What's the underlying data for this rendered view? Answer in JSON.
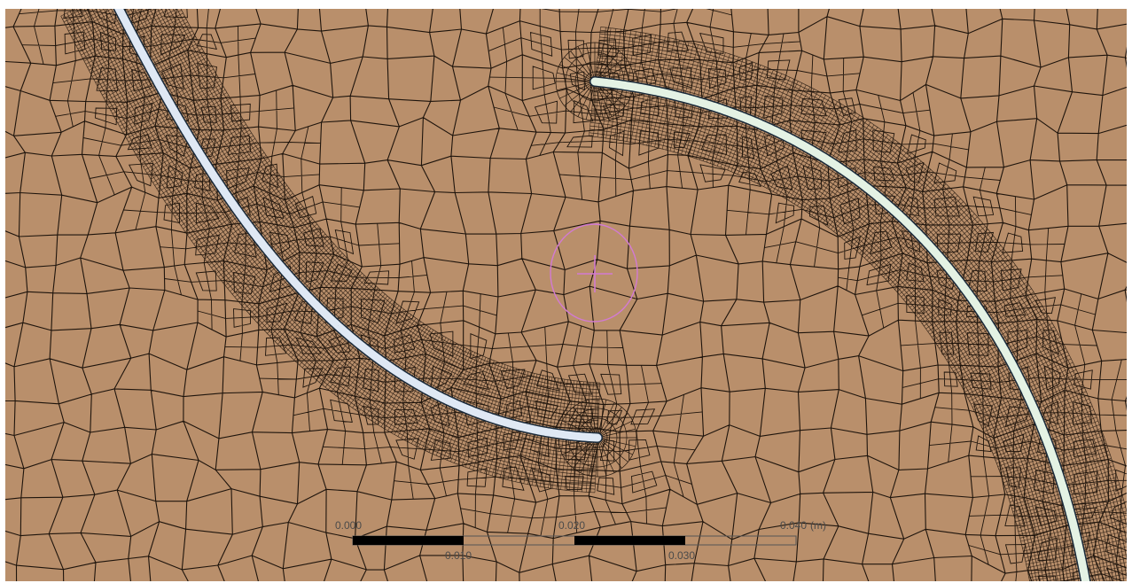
{
  "viewport": {
    "background_color": "#b98f6b",
    "mesh_line_color": "#1e140c",
    "blade_fill_color_left": "#dfe8f4",
    "blade_fill_color_right": "#e4f2e4",
    "probe_color": "#d27ad2"
  },
  "scale_bar": {
    "unit": "(m)",
    "ticks": [
      {
        "label": "0.000",
        "position": "top"
      },
      {
        "label": "0.010",
        "position": "bottom"
      },
      {
        "label": "0.020",
        "position": "top"
      },
      {
        "label": "0.030",
        "position": "bottom"
      },
      {
        "label": "0.040",
        "position": "top"
      }
    ]
  }
}
